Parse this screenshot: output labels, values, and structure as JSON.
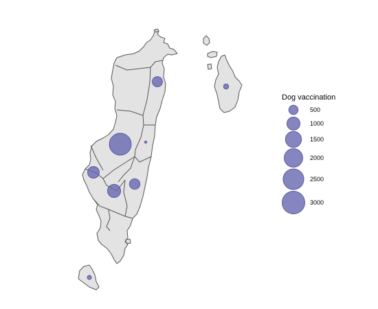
{
  "map": {
    "type": "proportional-symbol",
    "fill_color": "#e3e3e3",
    "border_color": "#555555",
    "bubble_color": "#6666b0"
  },
  "legend": {
    "title": "Dog vaccination",
    "entries": [
      {
        "value": 500,
        "label": "500"
      },
      {
        "value": 1000,
        "label": "1000"
      },
      {
        "value": 1500,
        "label": "1500"
      },
      {
        "value": 2000,
        "label": "2000"
      },
      {
        "value": 2500,
        "label": "2500"
      },
      {
        "value": 3000,
        "label": "3000"
      }
    ]
  },
  "regions": [
    {
      "id": "northeast",
      "value": 600
    },
    {
      "id": "northeast-island",
      "value": 150
    },
    {
      "id": "central-west",
      "value": 2800
    },
    {
      "id": "central-east",
      "value": 30
    },
    {
      "id": "west",
      "value": 800
    },
    {
      "id": "southwest",
      "value": 1000
    },
    {
      "id": "south-central",
      "value": 650
    },
    {
      "id": "southern-island",
      "value": 100
    }
  ]
}
